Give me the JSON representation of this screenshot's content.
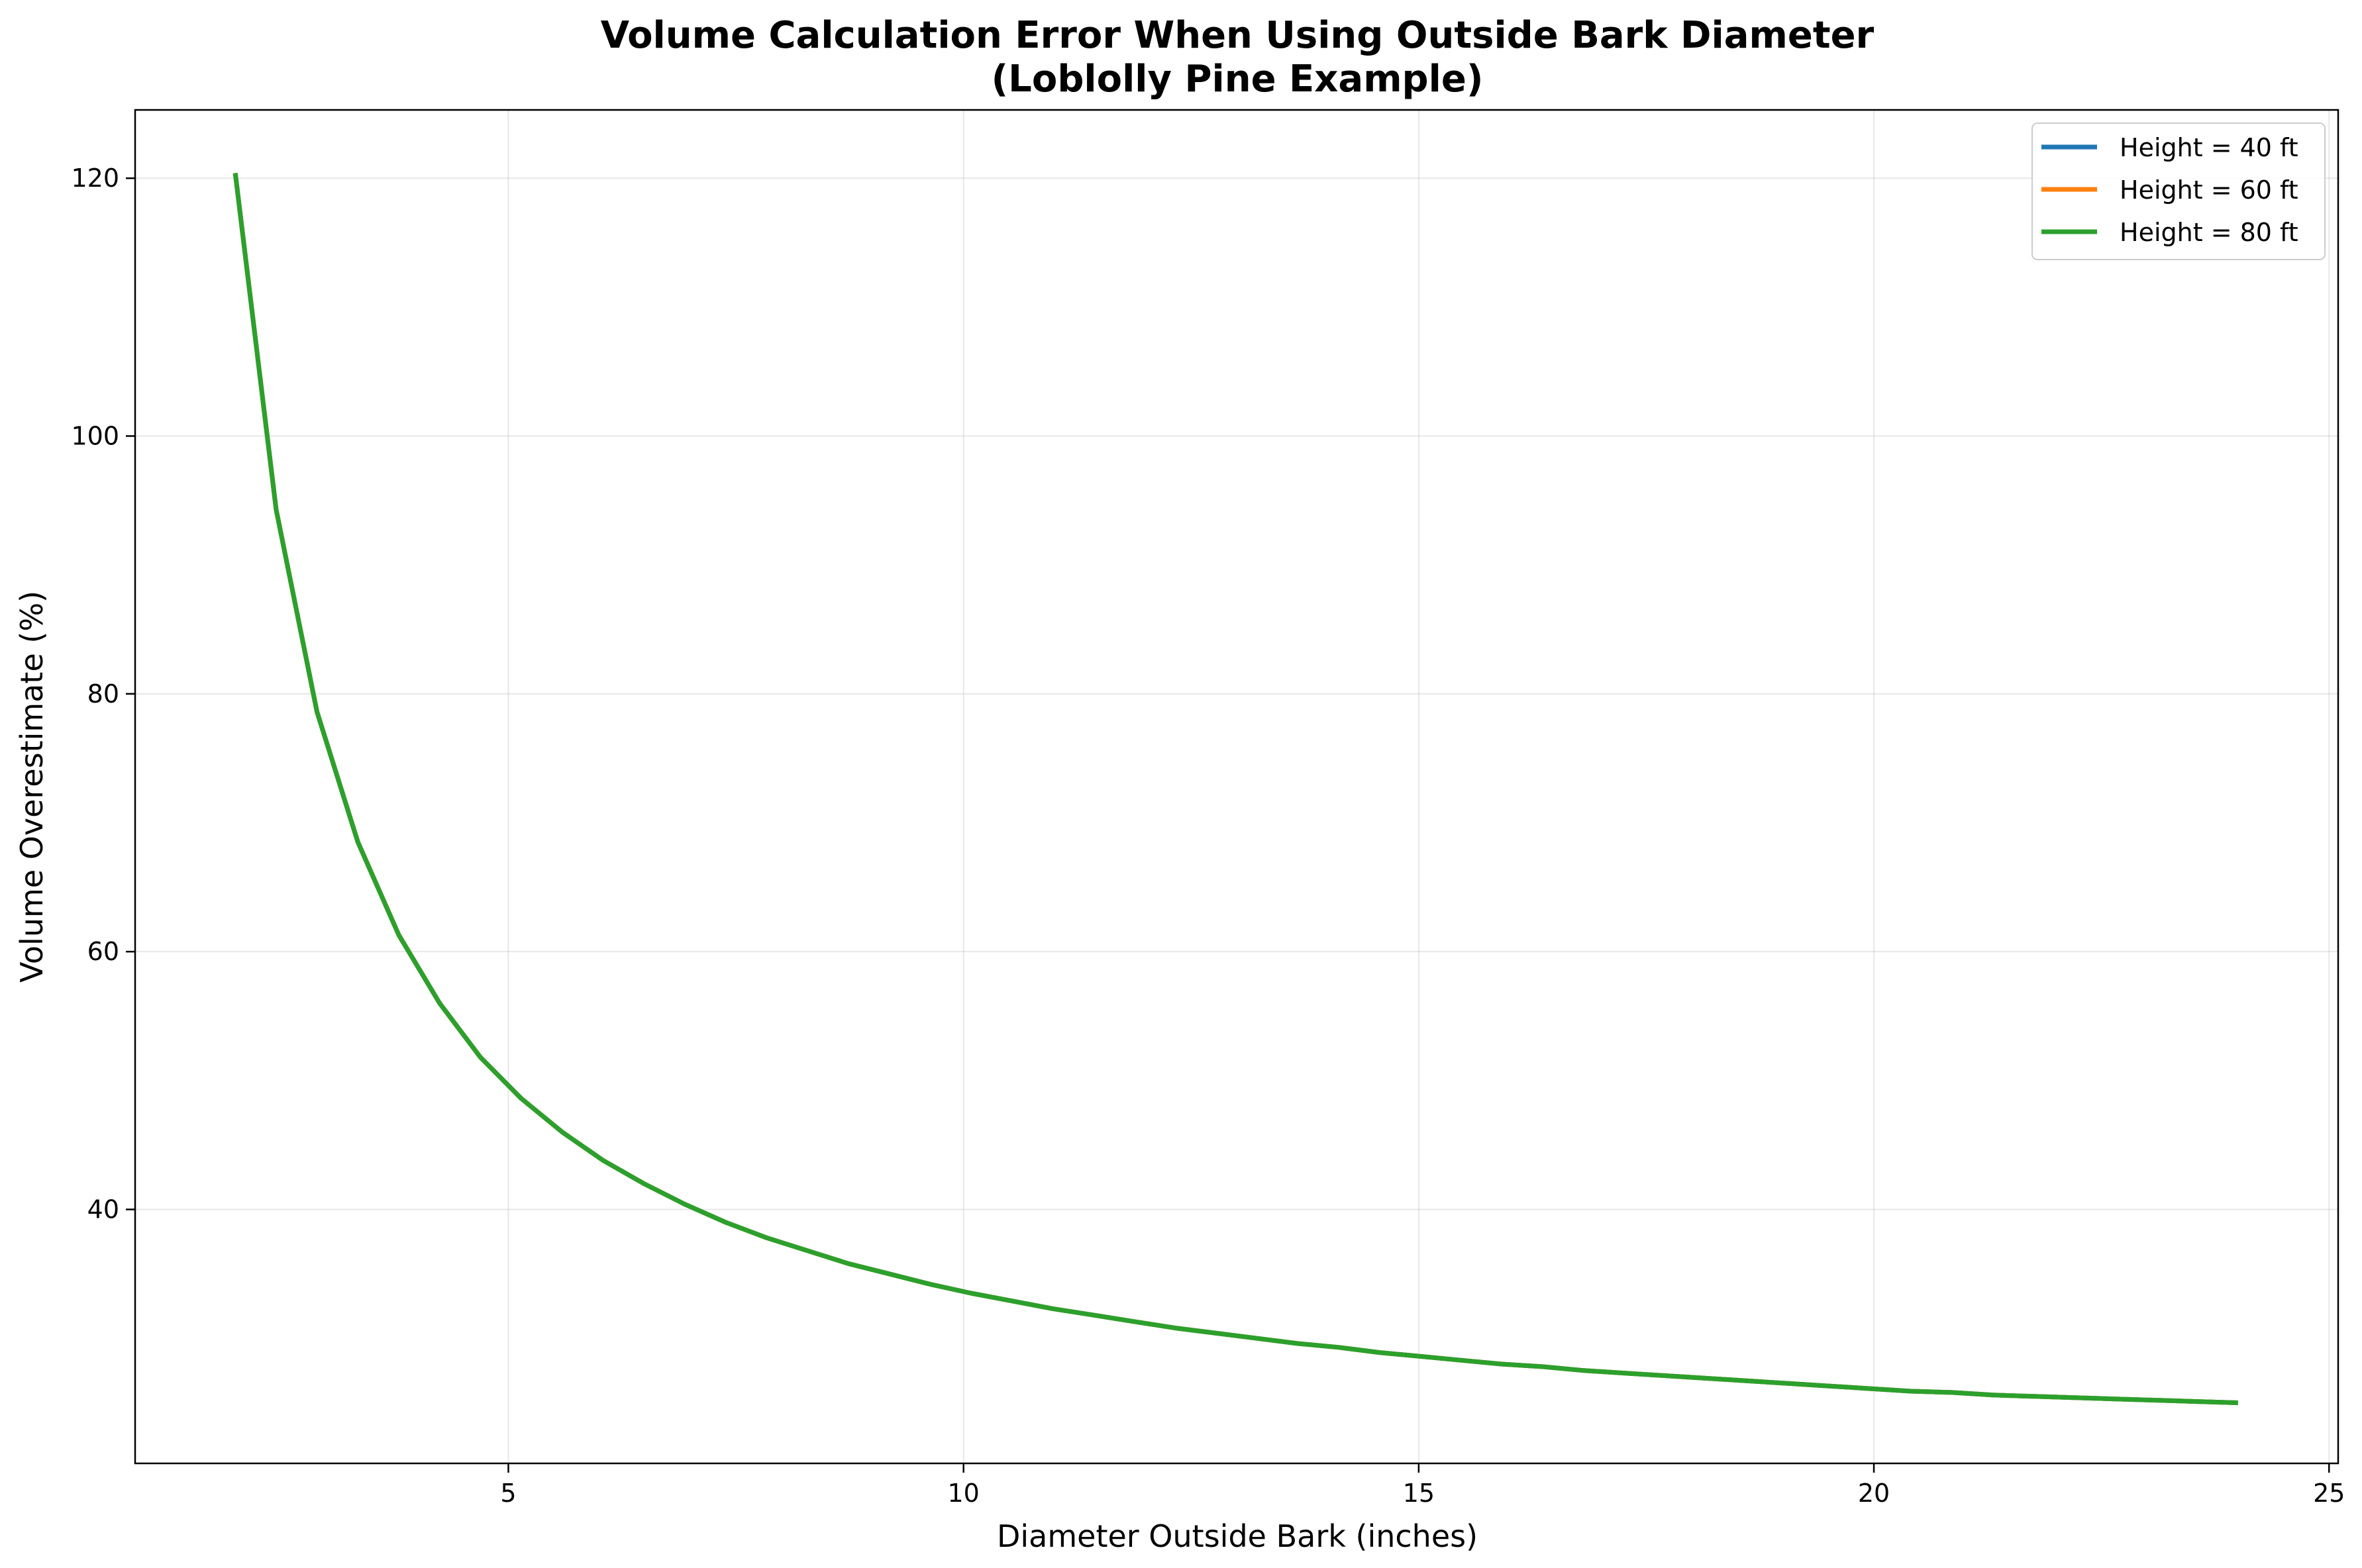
{
  "chart_data": {
    "type": "line",
    "title": "Volume Calculation Error When Using Outside Bark Diameter",
    "subtitle": "(Loblolly Pine Example)",
    "xlabel": "Diameter Outside Bark (inches)",
    "ylabel": "Volume Overestimate (%)",
    "xlim": [
      0.9,
      25.1
    ],
    "ylim": [
      20.3,
      125.3
    ],
    "xticks": [
      5,
      10,
      15,
      20,
      25
    ],
    "yticks": [
      40,
      60,
      80,
      100,
      120
    ],
    "grid": true,
    "legend_position": "top-right",
    "x": [
      2.0,
      2.449,
      2.898,
      3.347,
      3.796,
      4.245,
      4.694,
      5.143,
      5.592,
      6.041,
      6.49,
      6.939,
      7.388,
      7.837,
      8.286,
      8.735,
      9.184,
      9.633,
      10.082,
      10.531,
      10.98,
      11.429,
      11.878,
      12.327,
      12.776,
      13.224,
      13.673,
      14.122,
      14.571,
      15.02,
      15.469,
      15.918,
      16.367,
      16.816,
      17.265,
      17.714,
      18.163,
      18.612,
      19.061,
      19.51,
      19.959,
      20.408,
      20.857,
      21.306,
      21.755,
      22.204,
      22.653,
      23.102,
      23.551,
      24.0
    ],
    "series": [
      {
        "name": "Height = 40 ft",
        "color": "#1f77b4",
        "values": [
          120.4,
          94.3,
          78.6,
          68.5,
          61.3,
          56.0,
          51.8,
          48.6,
          46.0,
          43.8,
          42.0,
          40.4,
          39.0,
          37.8,
          36.8,
          35.8,
          35.0,
          34.2,
          33.5,
          32.9,
          32.3,
          31.8,
          31.3,
          30.8,
          30.4,
          30.0,
          29.6,
          29.3,
          28.9,
          28.6,
          28.3,
          28.0,
          27.8,
          27.5,
          27.3,
          27.1,
          26.9,
          26.7,
          26.5,
          26.3,
          26.1,
          25.9,
          25.8,
          25.6,
          25.5,
          25.4,
          25.3,
          25.2,
          25.1,
          25.0
        ]
      },
      {
        "name": "Height = 60 ft",
        "color": "#ff7f0e",
        "values": [
          120.4,
          94.3,
          78.6,
          68.5,
          61.3,
          56.0,
          51.8,
          48.6,
          46.0,
          43.8,
          42.0,
          40.4,
          39.0,
          37.8,
          36.8,
          35.8,
          35.0,
          34.2,
          33.5,
          32.9,
          32.3,
          31.8,
          31.3,
          30.8,
          30.4,
          30.0,
          29.6,
          29.3,
          28.9,
          28.6,
          28.3,
          28.0,
          27.8,
          27.5,
          27.3,
          27.1,
          26.9,
          26.7,
          26.5,
          26.3,
          26.1,
          25.9,
          25.8,
          25.6,
          25.5,
          25.4,
          25.3,
          25.2,
          25.1,
          25.0
        ]
      },
      {
        "name": "Height = 80 ft",
        "color": "#2ca02c",
        "values": [
          120.4,
          94.3,
          78.6,
          68.5,
          61.3,
          56.0,
          51.8,
          48.6,
          46.0,
          43.8,
          42.0,
          40.4,
          39.0,
          37.8,
          36.8,
          35.8,
          35.0,
          34.2,
          33.5,
          32.9,
          32.3,
          31.8,
          31.3,
          30.8,
          30.4,
          30.0,
          29.6,
          29.3,
          28.9,
          28.6,
          28.3,
          28.0,
          27.8,
          27.5,
          27.3,
          27.1,
          26.9,
          26.7,
          26.5,
          26.3,
          26.1,
          25.9,
          25.8,
          25.6,
          25.5,
          25.4,
          25.3,
          25.2,
          25.1,
          25.0
        ]
      }
    ]
  }
}
